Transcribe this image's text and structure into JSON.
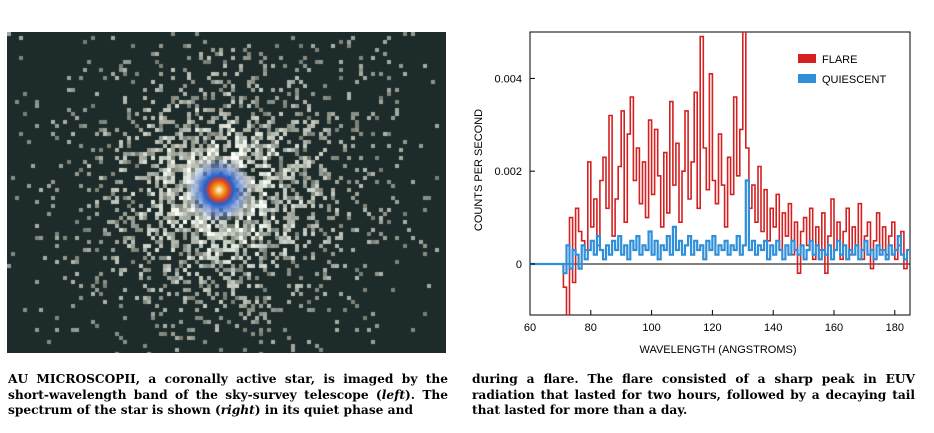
{
  "caption": {
    "left": [
      {
        "text": "AU MICROSCOPII, a coronally active star, is imaged by the short-wavelength band of the sky-survey telescope (",
        "style": "normal"
      },
      {
        "text": "left",
        "style": "italic"
      },
      {
        "text": "). The spectrum of the star is shown (",
        "style": "normal"
      },
      {
        "text": "right",
        "style": "italic"
      },
      {
        "text": ") in its quiet phase and",
        "style": "normal"
      }
    ],
    "right": "during a flare. The flare consisted of a sharp peak in EUV radiation that lasted for two hours, followed by a decaying tail that lasted for more than a day."
  },
  "image": {
    "description_icon": "star-image",
    "background_color": "#1d2b2a",
    "core_color": "#f0a020",
    "halo_color": "#2060d0"
  },
  "chart_data": {
    "type": "line",
    "xlabel": "WAVELENGTH (ANGSTROMS)",
    "ylabel": "COUNTS PER SECOND",
    "xlim": [
      60,
      185
    ],
    "ylim": [
      -0.0011,
      0.005
    ],
    "xticks": [
      60,
      80,
      100,
      120,
      140,
      160,
      180
    ],
    "xtick_labels": [
      "60",
      "80",
      "100",
      "120",
      "140",
      "160",
      "180"
    ],
    "yticks": [
      0,
      0.002,
      0.004
    ],
    "ytick_labels": [
      "0",
      "0.002",
      "0.004"
    ],
    "legend_position": "top-right",
    "series": [
      {
        "name": "FLARE",
        "color": "#d42020",
        "x": [
          60,
          62,
          64,
          66,
          68,
          70,
          71,
          72,
          73,
          74,
          75,
          76,
          77,
          78,
          79,
          80,
          81,
          82,
          83,
          84,
          85,
          86,
          87,
          88,
          89,
          90,
          91,
          92,
          93,
          94,
          95,
          96,
          97,
          98,
          99,
          100,
          101,
          102,
          103,
          104,
          105,
          106,
          107,
          108,
          109,
          110,
          111,
          112,
          113,
          114,
          115,
          116,
          117,
          118,
          119,
          120,
          121,
          122,
          123,
          124,
          125,
          126,
          127,
          128,
          129,
          130,
          131,
          132,
          133,
          134,
          135,
          136,
          137,
          138,
          139,
          140,
          141,
          142,
          143,
          144,
          145,
          146,
          147,
          148,
          149,
          150,
          151,
          152,
          153,
          154,
          155,
          156,
          157,
          158,
          159,
          160,
          161,
          162,
          163,
          164,
          165,
          166,
          167,
          168,
          169,
          170,
          171,
          172,
          173,
          174,
          175,
          176,
          177,
          178,
          179,
          180,
          181,
          182,
          183,
          184
        ],
        "values": [
          0,
          0,
          0,
          0,
          0,
          0,
          -0.0005,
          -0.0011,
          0.001,
          -0.0004,
          0.0012,
          0.0007,
          0.0005,
          0.0003,
          0.0022,
          0.0008,
          0.0014,
          0.0004,
          0.0018,
          0.0023,
          0.0012,
          0.0032,
          0.0006,
          0.0014,
          0.0021,
          0.0033,
          0.0009,
          0.0028,
          0.0036,
          0.0018,
          0.0025,
          0.0013,
          0.0022,
          0.001,
          0.0031,
          0.0015,
          0.0029,
          0.0019,
          0.0008,
          0.0024,
          0.0011,
          0.0035,
          0.0017,
          0.0026,
          0.0009,
          0.002,
          0.0033,
          0.0014,
          0.0022,
          0.0037,
          0.0012,
          0.0049,
          0.0025,
          0.0016,
          0.0041,
          0.0018,
          0.0013,
          0.0028,
          0.0017,
          0.0008,
          0.0023,
          0.0015,
          0.0036,
          0.0019,
          0.0029,
          0.005,
          0.0025,
          0.0012,
          0.0017,
          0.0009,
          0.0021,
          0.0007,
          0.0016,
          0.0005,
          0.0012,
          0.0008,
          0.0015,
          0.0003,
          0.0011,
          0.0006,
          0.0013,
          0.0002,
          0.0009,
          -0.0002,
          0.0007,
          0.001,
          0.0004,
          0.0012,
          0.0001,
          0.0008,
          0.0003,
          0.0011,
          -0.0002,
          0.0006,
          0.0014,
          0.0003,
          0.0009,
          0.0001,
          0.0007,
          0.0012,
          0.0002,
          0.0008,
          0.0004,
          0.0013,
          0.0001,
          0.0006,
          0.0009,
          -0.0001,
          0.0005,
          0.0011,
          0.0003,
          0.0008,
          0.0002,
          0.0006,
          0.0009,
          0.0001,
          0.0004,
          0.0007,
          -0.0001,
          0.0003
        ]
      },
      {
        "name": "QUIESCENT",
        "color": "#2f8fd8",
        "x": [
          60,
          62,
          64,
          66,
          68,
          70,
          71,
          72,
          73,
          74,
          75,
          76,
          77,
          78,
          79,
          80,
          81,
          82,
          83,
          84,
          85,
          86,
          87,
          88,
          89,
          90,
          91,
          92,
          93,
          94,
          95,
          96,
          97,
          98,
          99,
          100,
          101,
          102,
          103,
          104,
          105,
          106,
          107,
          108,
          109,
          110,
          111,
          112,
          113,
          114,
          115,
          116,
          117,
          118,
          119,
          120,
          121,
          122,
          123,
          124,
          125,
          126,
          127,
          128,
          129,
          130,
          131,
          132,
          133,
          134,
          135,
          136,
          137,
          138,
          139,
          140,
          141,
          142,
          143,
          144,
          145,
          146,
          147,
          148,
          149,
          150,
          151,
          152,
          153,
          154,
          155,
          156,
          157,
          158,
          159,
          160,
          161,
          162,
          163,
          164,
          165,
          166,
          167,
          168,
          169,
          170,
          171,
          172,
          173,
          174,
          175,
          176,
          177,
          178,
          179,
          180,
          181,
          182,
          183,
          184
        ],
        "values": [
          0,
          0,
          0,
          0,
          0,
          0,
          -0.0002,
          0.0004,
          -0.0001,
          0.0003,
          0.0002,
          -0.0001,
          0.0004,
          0.0001,
          0.0003,
          0.0005,
          0.0002,
          0.0006,
          0.0003,
          0.0001,
          0.0004,
          0.0002,
          0.0005,
          0.0003,
          0.0006,
          0.0002,
          0.0004,
          0.0001,
          0.0005,
          0.0003,
          0.0006,
          0.0002,
          0.0004,
          0.0003,
          0.0007,
          0.0002,
          0.0005,
          0.0001,
          0.0004,
          0.0003,
          0.0006,
          0.0002,
          0.0008,
          0.0003,
          0.0005,
          0.0002,
          0.0004,
          0.0006,
          0.0002,
          0.0005,
          0.0003,
          0.0004,
          0.0001,
          0.0005,
          0.0003,
          0.0006,
          0.0002,
          0.0004,
          0.0003,
          0.0005,
          0.0002,
          0.0004,
          0.0003,
          0.0006,
          0.0002,
          0.0004,
          0.0018,
          0.0003,
          0.0005,
          0.0002,
          0.0004,
          0.0003,
          0.0005,
          0.0001,
          0.0004,
          0.0002,
          0.0005,
          0.0003,
          0.0001,
          0.0004,
          0.0002,
          0.0005,
          0.0003,
          0.0002,
          0.0004,
          0.0001,
          0.0003,
          0.0005,
          0.0002,
          0.0004,
          0.0001,
          0.0003,
          0.0002,
          0.0004,
          0.0001,
          0.0003,
          0.0005,
          0.0002,
          0.0004,
          0.0001,
          0.0003,
          0.0002,
          0.0004,
          0.0001,
          0.0003,
          0.0005,
          0.0002,
          0.0003,
          0.0001,
          0.0004,
          0.0002,
          0.0003,
          0.0001,
          0.0004,
          0.0002,
          0.0003,
          0.0006,
          0.0002,
          0.0001,
          0.0003
        ]
      }
    ]
  }
}
